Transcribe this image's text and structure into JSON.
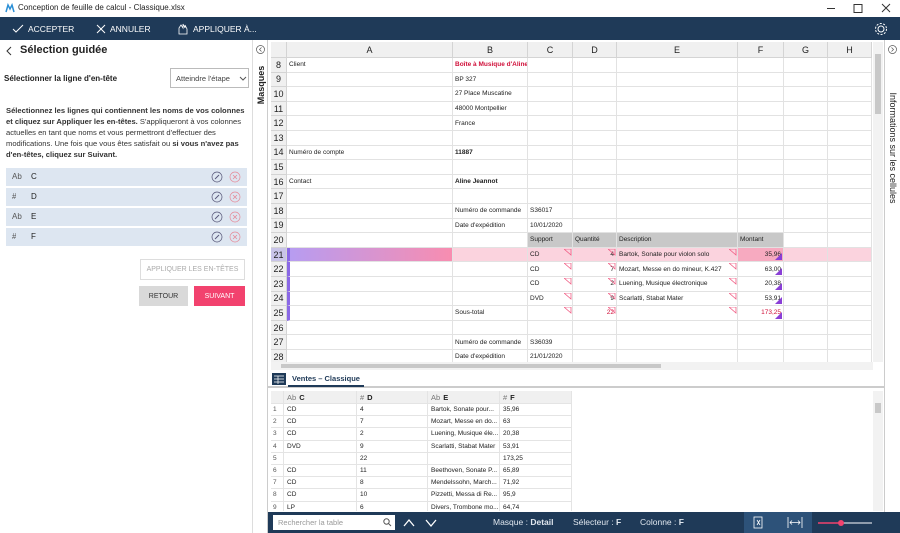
{
  "window": {
    "title": "Conception de feuille de calcul - Classique.xlsx"
  },
  "toolbar": {
    "accept": "ACCEPTER",
    "cancel": "ANNULER",
    "apply_to": "APPLIQUER À..."
  },
  "panel": {
    "title": "Sélection guidée",
    "step_label": "Sélectionner la ligne d'en-tête",
    "dropdown": "Atteindre l'étape",
    "instructions": [
      {
        "text": "Sélectionnez les lignes qui contiennent les noms de vos colonnes et cliquez sur Appliquer les en-têtes.",
        "bold": true
      },
      {
        "text": " S'appliqueront à vos colonnes actuelles en tant que noms et vous permettront d'effectuer des modifications. Une fois que vous êtes satisfait ou ",
        "bold": false
      },
      {
        "text": "si vous n'avez pas d'en-têtes, cliquez sur Suivant.",
        "bold": true
      }
    ],
    "columns": [
      {
        "type": "Ab",
        "name": "C"
      },
      {
        "type": "#",
        "name": "D"
      },
      {
        "type": "Ab",
        "name": "E"
      },
      {
        "type": "#",
        "name": "F"
      }
    ],
    "apply_button": "APPLIQUER LES EN-TÊTES",
    "back_button": "RETOUR",
    "next_button": "SUIVANT"
  },
  "side_tabs": {
    "left": "Masques",
    "right": "Informations sur les cellules"
  },
  "sheet": {
    "columns": [
      "A",
      "B",
      "C",
      "D",
      "E",
      "F",
      "G",
      "H"
    ],
    "rows": [
      {
        "n": "8",
        "cells": [
          "Client",
          "Boîte à Musique d'Aline",
          null,
          null,
          null,
          null,
          null,
          null
        ]
      },
      {
        "n": "9",
        "cells": [
          null,
          "BP 327",
          null,
          null,
          null,
          null,
          null,
          null
        ]
      },
      {
        "n": "10",
        "cells": [
          null,
          "27 Place Muscatine",
          null,
          null,
          null,
          null,
          null,
          null
        ]
      },
      {
        "n": "11",
        "cells": [
          null,
          "48000 Montpellier",
          null,
          null,
          null,
          null,
          null,
          null
        ]
      },
      {
        "n": "12",
        "cells": [
          null,
          "France",
          null,
          null,
          null,
          null,
          null,
          null
        ]
      },
      {
        "n": "13",
        "cells": [
          null,
          null,
          null,
          null,
          null,
          null,
          null,
          null
        ]
      },
      {
        "n": "14",
        "cells": [
          "Numéro de compte",
          "11887",
          null,
          null,
          null,
          null,
          null,
          null
        ]
      },
      {
        "n": "15",
        "cells": [
          null,
          null,
          null,
          null,
          null,
          null,
          null,
          null
        ]
      },
      {
        "n": "16",
        "cells": [
          "Contact",
          "Aline Jeannot",
          null,
          null,
          null,
          null,
          null,
          null
        ]
      },
      {
        "n": "17",
        "cells": [
          null,
          null,
          null,
          null,
          null,
          null,
          null,
          null
        ]
      },
      {
        "n": "18",
        "cells": [
          null,
          "Numéro de commande",
          "S36017",
          null,
          null,
          null,
          null,
          null
        ]
      },
      {
        "n": "19",
        "cells": [
          null,
          "Date d'expédition",
          "10/01/2020",
          null,
          null,
          null,
          null,
          null
        ]
      },
      {
        "n": "20",
        "cells": [
          null,
          null,
          "Support",
          "Quantité",
          "Description",
          "Montant",
          null,
          null
        ]
      },
      {
        "n": "21",
        "cells": [
          null,
          null,
          "CD",
          "4",
          "Bartok, Sonate pour violon solo",
          "35,96",
          null,
          null
        ]
      },
      {
        "n": "22",
        "cells": [
          null,
          null,
          "CD",
          "7",
          "Mozart, Messe en do mineur, K.427",
          "63,00",
          null,
          null
        ]
      },
      {
        "n": "23",
        "cells": [
          null,
          null,
          "CD",
          "2",
          "Luening, Musique électronique",
          "20,38",
          null,
          null
        ]
      },
      {
        "n": "24",
        "cells": [
          null,
          null,
          "DVD",
          "9",
          "Scarlatti, Stabat Mater",
          "53,91",
          null,
          null
        ]
      },
      {
        "n": "25",
        "cells": [
          null,
          "Sous-total",
          null,
          "22",
          null,
          "173,25",
          null,
          null
        ]
      },
      {
        "n": "26",
        "cells": [
          null,
          null,
          null,
          null,
          null,
          null,
          null,
          null
        ]
      },
      {
        "n": "27",
        "cells": [
          null,
          "Numéro de commande",
          "S36039",
          null,
          null,
          null,
          null,
          null
        ]
      },
      {
        "n": "28",
        "cells": [
          null,
          "Date d'expédition",
          "21/01/2020",
          null,
          null,
          null,
          null,
          null
        ]
      }
    ]
  },
  "tab": "Ventes – Classique",
  "grid": {
    "headers": [
      {
        "type": "Ab",
        "name": "C"
      },
      {
        "type": "#",
        "name": "D"
      },
      {
        "type": "Ab",
        "name": "E"
      },
      {
        "type": "#",
        "name": "F"
      }
    ],
    "rows": [
      [
        "1",
        "CD",
        "4",
        "Bartok, Sonate pour...",
        "35,96"
      ],
      [
        "2",
        "CD",
        "7",
        "Mozart, Messe en do...",
        "63"
      ],
      [
        "3",
        "CD",
        "2",
        "Luening, Musique éle...",
        "20,38"
      ],
      [
        "4",
        "DVD",
        "9",
        "Scarlatti, Stabat Mater",
        "53,91"
      ],
      [
        "5",
        null,
        "22",
        null,
        "173,25"
      ],
      [
        "6",
        "CD",
        "11",
        "Beethoven, Sonate P...",
        "65,89"
      ],
      [
        "7",
        "CD",
        "8",
        "Mendelssohn, March...",
        "71,92"
      ],
      [
        "8",
        "CD",
        "10",
        "Pizzetti, Messa di Re...",
        "95,9"
      ],
      [
        "9",
        "LP",
        "6",
        "Divers, Trombone mo...",
        "64,74"
      ]
    ]
  },
  "status": {
    "search_placeholder": "Rechercher la table",
    "mask_label": "Masque :",
    "mask_value": "Detail",
    "selector_label": "Sélecteur :",
    "selector_value": "F",
    "column_label": "Colonne :",
    "column_value": "F"
  }
}
